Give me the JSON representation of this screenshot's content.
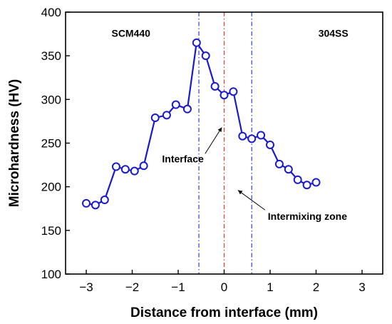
{
  "chart_data": {
    "type": "line",
    "xlabel": "Distance from interface (mm)",
    "ylabel": "Microhardness (HV)",
    "xlim": [
      -3.45,
      3.45
    ],
    "ylim": [
      100,
      400
    ],
    "xticks": [
      -3,
      -2,
      -1,
      0,
      1,
      2,
      3
    ],
    "xtick_labels": [
      "−3",
      "−2",
      "−1",
      "0",
      "1",
      "2",
      "3"
    ],
    "yticks": [
      100,
      150,
      200,
      250,
      300,
      350,
      400
    ],
    "ytick_labels": [
      "100",
      "150",
      "200",
      "250",
      "300",
      "350",
      "400"
    ],
    "grid": false,
    "series": [
      {
        "color": "#1a1acc",
        "marker": "open-circle",
        "x": [
          -3.0,
          -2.8,
          -2.6,
          -2.35,
          -2.15,
          -1.95,
          -1.75,
          -1.5,
          -1.25,
          -1.05,
          -0.8,
          -0.6,
          -0.4,
          -0.2,
          0.0,
          0.2,
          0.4,
          0.6,
          0.8,
          1.0,
          1.2,
          1.4,
          1.6,
          1.8,
          2.0,
          2.2,
          2.4,
          2.6,
          2.8
        ],
        "y": [
          181,
          179,
          185,
          223,
          220,
          218,
          224,
          279,
          282,
          294,
          289,
          365,
          350,
          315,
          305,
          309,
          258,
          255,
          259,
          248,
          226,
          220,
          208,
          202,
          205,
          null,
          null,
          null,
          null
        ]
      }
    ],
    "reference_lines": [
      {
        "x": -0.55,
        "color": "#3a3ad0",
        "style": "dash-dot"
      },
      {
        "x": 0.0,
        "color": "#e03a3a",
        "style": "dash-dot"
      },
      {
        "x": 0.6,
        "color": "#3a3ad0",
        "style": "dash-dot"
      }
    ],
    "annotations": [
      {
        "text": "SCM440",
        "x": -2.45,
        "y": 372
      },
      {
        "text": "304SS",
        "x": 2.05,
        "y": 372
      },
      {
        "text": "Interface",
        "x": -1.35,
        "y": 228,
        "arrow_to": [
          -0.05,
          268
        ]
      },
      {
        "text": "Intermixing zone",
        "x": 0.95,
        "y": 162,
        "arrow_to": [
          0.3,
          196
        ]
      }
    ]
  }
}
